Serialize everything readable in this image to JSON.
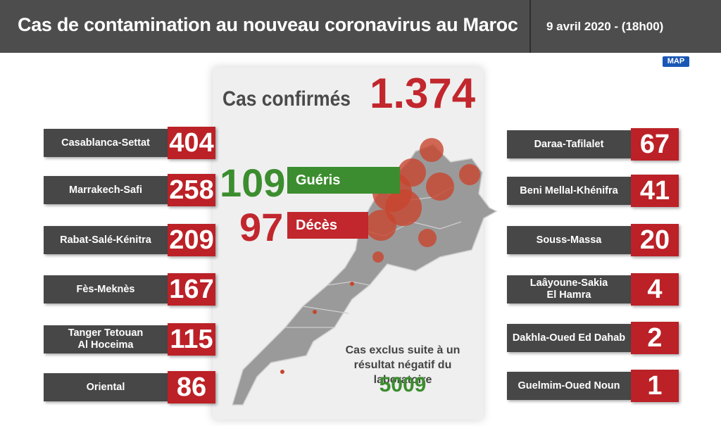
{
  "header": {
    "title": "Cas de contamination au nouveau coronavirus au Maroc",
    "date": "9 avril 2020 - (18h00)",
    "logo": "MAP"
  },
  "confirmed": {
    "label": "Cas confirmés",
    "value": "1.374"
  },
  "recovered": {
    "value": "109",
    "label": "Guéris",
    "color": "#3c8d2f"
  },
  "deaths": {
    "value": "97",
    "label": "Décès",
    "color": "#c1272d"
  },
  "excluded": {
    "text": "Cas exclus suite à un résultat négatif du laboratoire",
    "value": "5009"
  },
  "left_regions": [
    {
      "name": "Casablanca-Settat",
      "value": "404"
    },
    {
      "name": "Marrakech-Safi",
      "value": "258"
    },
    {
      "name": "Rabat-Salé-Kénitra",
      "value": "209"
    },
    {
      "name": "Fès-Meknès",
      "value": "167"
    },
    {
      "name": "Tanger Tetouan\nAl Hoceima",
      "value": "115"
    },
    {
      "name": "Oriental",
      "value": "86"
    }
  ],
  "right_regions": [
    {
      "name": "Daraa-Tafilalet",
      "value": "67"
    },
    {
      "name": "Beni Mellal-Khénifra",
      "value": "41"
    },
    {
      "name": "Souss-Massa",
      "value": "20"
    },
    {
      "name": "Laâyoune-Sakia\nEl Hamra",
      "value": "4"
    },
    {
      "name": "Dakhla-Oued Ed Dahab",
      "value": "2"
    },
    {
      "name": "Guelmim-Oued Noun",
      "value": "1"
    }
  ],
  "colors": {
    "header_bg": "#4d4d4d",
    "accent_red": "#bb2127",
    "label_bg": "#474747",
    "map_gray": "#9a9a9a",
    "bubble": "#c8452e"
  }
}
